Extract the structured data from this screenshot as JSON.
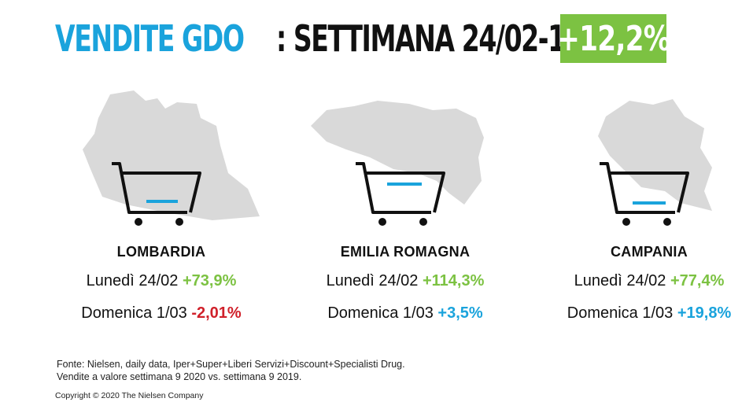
{
  "title": {
    "part1": "VENDITE GDO",
    "part2": ": SETTIMANA 24/02-1/03",
    "badge": "+12,2%"
  },
  "colors": {
    "accent_blue": "#1aa3dc",
    "accent_green": "#7cc242",
    "negative_red": "#d0202a",
    "map_gray": "#d9d9d9"
  },
  "regions": [
    {
      "name": "LOMBARDIA",
      "row1_label": "Lunedì 24/02 ",
      "row1_value": "+73,9%",
      "row2_label": "Domenica 1/03 ",
      "row2_value": "-2,01%"
    },
    {
      "name": "EMILIA ROMAGNA",
      "row1_label": "Lunedì 24/02 ",
      "row1_value": "+114,3%",
      "row2_label": "Domenica 1/03 ",
      "row2_value": "+3,5%"
    },
    {
      "name": "CAMPANIA",
      "row1_label": "Lunedì 24/02 ",
      "row1_value": "+77,4%",
      "row2_label": "Domenica 1/03 ",
      "row2_value": "+19,8%"
    }
  ],
  "footer": {
    "line1": "Fonte: Nielsen,  daily data, Iper+Super+Liberi  Servizi+Discount+Specialisti  Drug.",
    "line2": "Vendite a valore settimana  9 2020  vs. settimana 9 2019.",
    "copyright": "Copyright © 2020 The Nielsen Company"
  }
}
